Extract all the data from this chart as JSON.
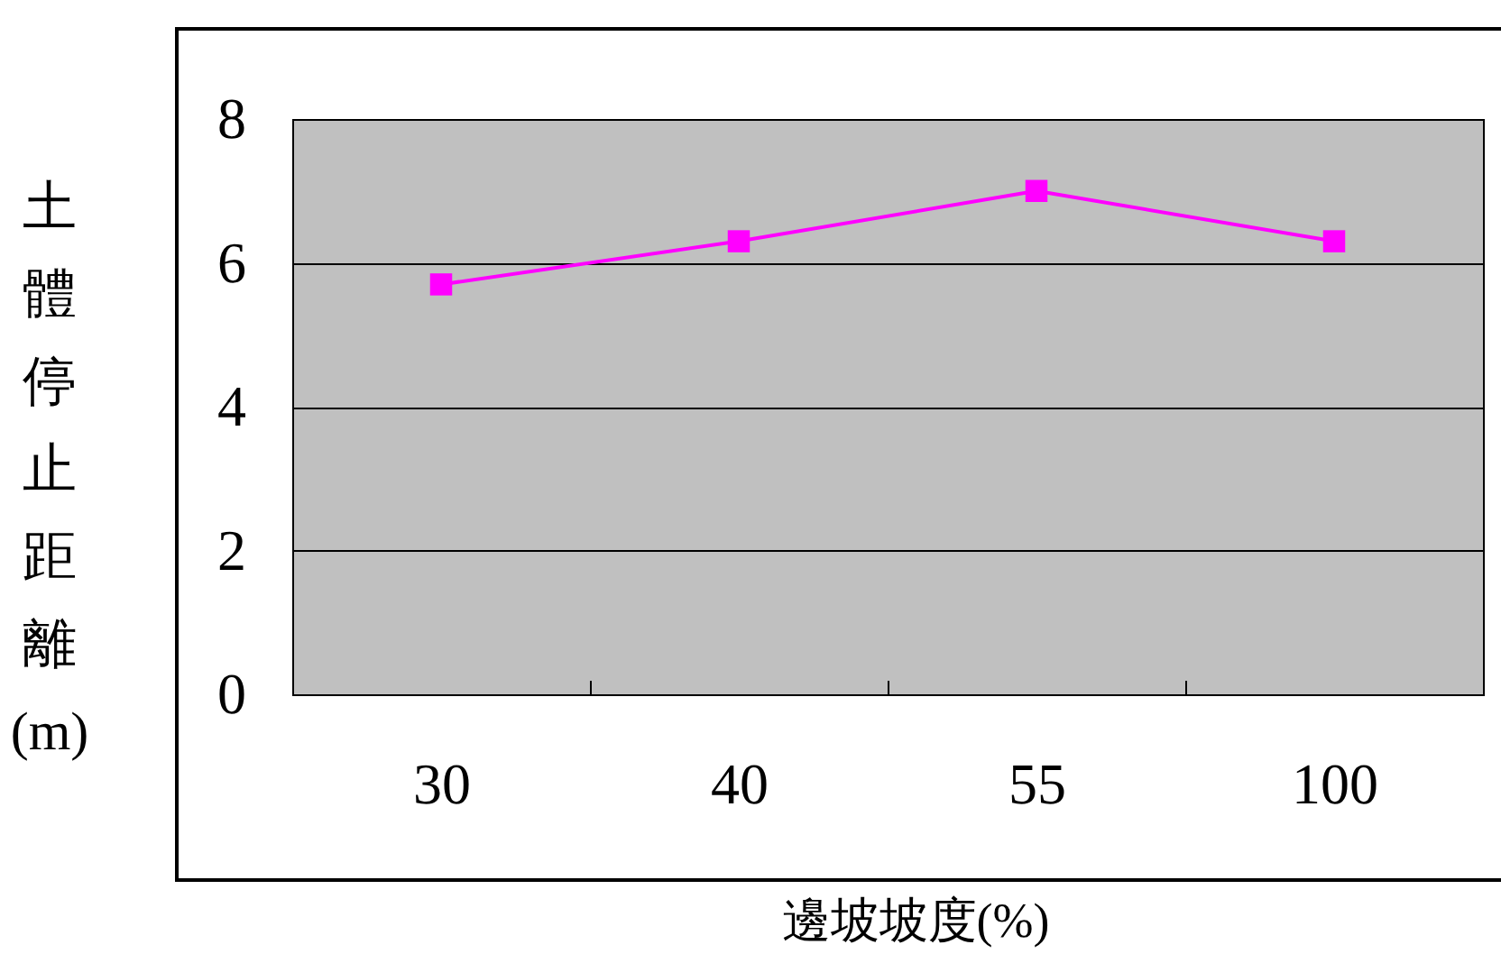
{
  "chart_data": {
    "type": "line",
    "xlabel": "邊坡坡度(%)",
    "ylabel": "土體停止距離(m)",
    "categories": [
      "30",
      "40",
      "55",
      "100"
    ],
    "series": [
      {
        "color": "#ff00ff",
        "values": [
          5.7,
          6.3,
          7.0,
          6.3
        ]
      }
    ],
    "ylim": [
      0,
      8
    ],
    "yticks": [
      0,
      2,
      4,
      6,
      8
    ],
    "grid": "y",
    "marker": "square"
  }
}
